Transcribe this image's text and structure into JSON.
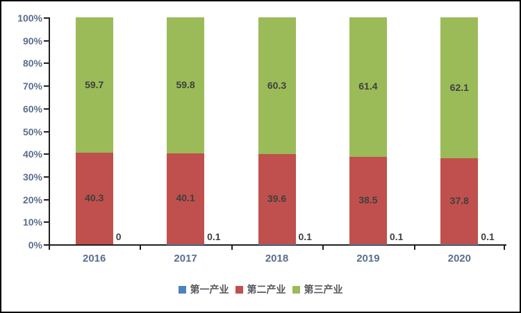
{
  "chart_data": {
    "type": "bar",
    "subtype": "stacked-100",
    "title": "",
    "xlabel": "",
    "ylabel": "",
    "categories": [
      "2016",
      "2017",
      "2018",
      "2019",
      "2020"
    ],
    "series": [
      {
        "name": "第一产业",
        "color": "#4F81BD",
        "values": [
          0,
          0.1,
          0.1,
          0.1,
          0.1
        ],
        "labels": [
          "0",
          "0.1",
          "0.1",
          "0.1",
          "0.1"
        ],
        "label_position": "outside-right"
      },
      {
        "name": "第二产业",
        "color": "#C0504D",
        "values": [
          40.3,
          40.1,
          39.6,
          38.5,
          37.8
        ],
        "labels": [
          "40.3",
          "40.1",
          "39.6",
          "38.5",
          "37.8"
        ],
        "label_position": "inside"
      },
      {
        "name": "第三产业",
        "color": "#9BBB59",
        "values": [
          59.7,
          59.8,
          60.3,
          61.4,
          62.1
        ],
        "labels": [
          "59.7",
          "59.8",
          "60.3",
          "61.4",
          "62.1"
        ],
        "label_position": "inside"
      }
    ],
    "y_axis": {
      "min": 0,
      "max": 100,
      "step": 10,
      "tick_labels": [
        "0%",
        "10%",
        "20%",
        "30%",
        "40%",
        "50%",
        "60%",
        "70%",
        "80%",
        "90%",
        "100%"
      ]
    },
    "legend": {
      "position": "bottom",
      "entries": [
        {
          "label": "第一产业",
          "color": "#4F81BD"
        },
        {
          "label": "第二产业",
          "color": "#C0504D"
        },
        {
          "label": "第三产业",
          "color": "#9BBB59"
        }
      ]
    },
    "grid": false
  },
  "colors": {
    "frame_border": "#000000",
    "axis_line": "#1f1f1f",
    "axis_text": "#5a6e8c",
    "legend_text": "#54575c",
    "data_label_text": "#3f3f3f",
    "background": "#ffffff"
  }
}
